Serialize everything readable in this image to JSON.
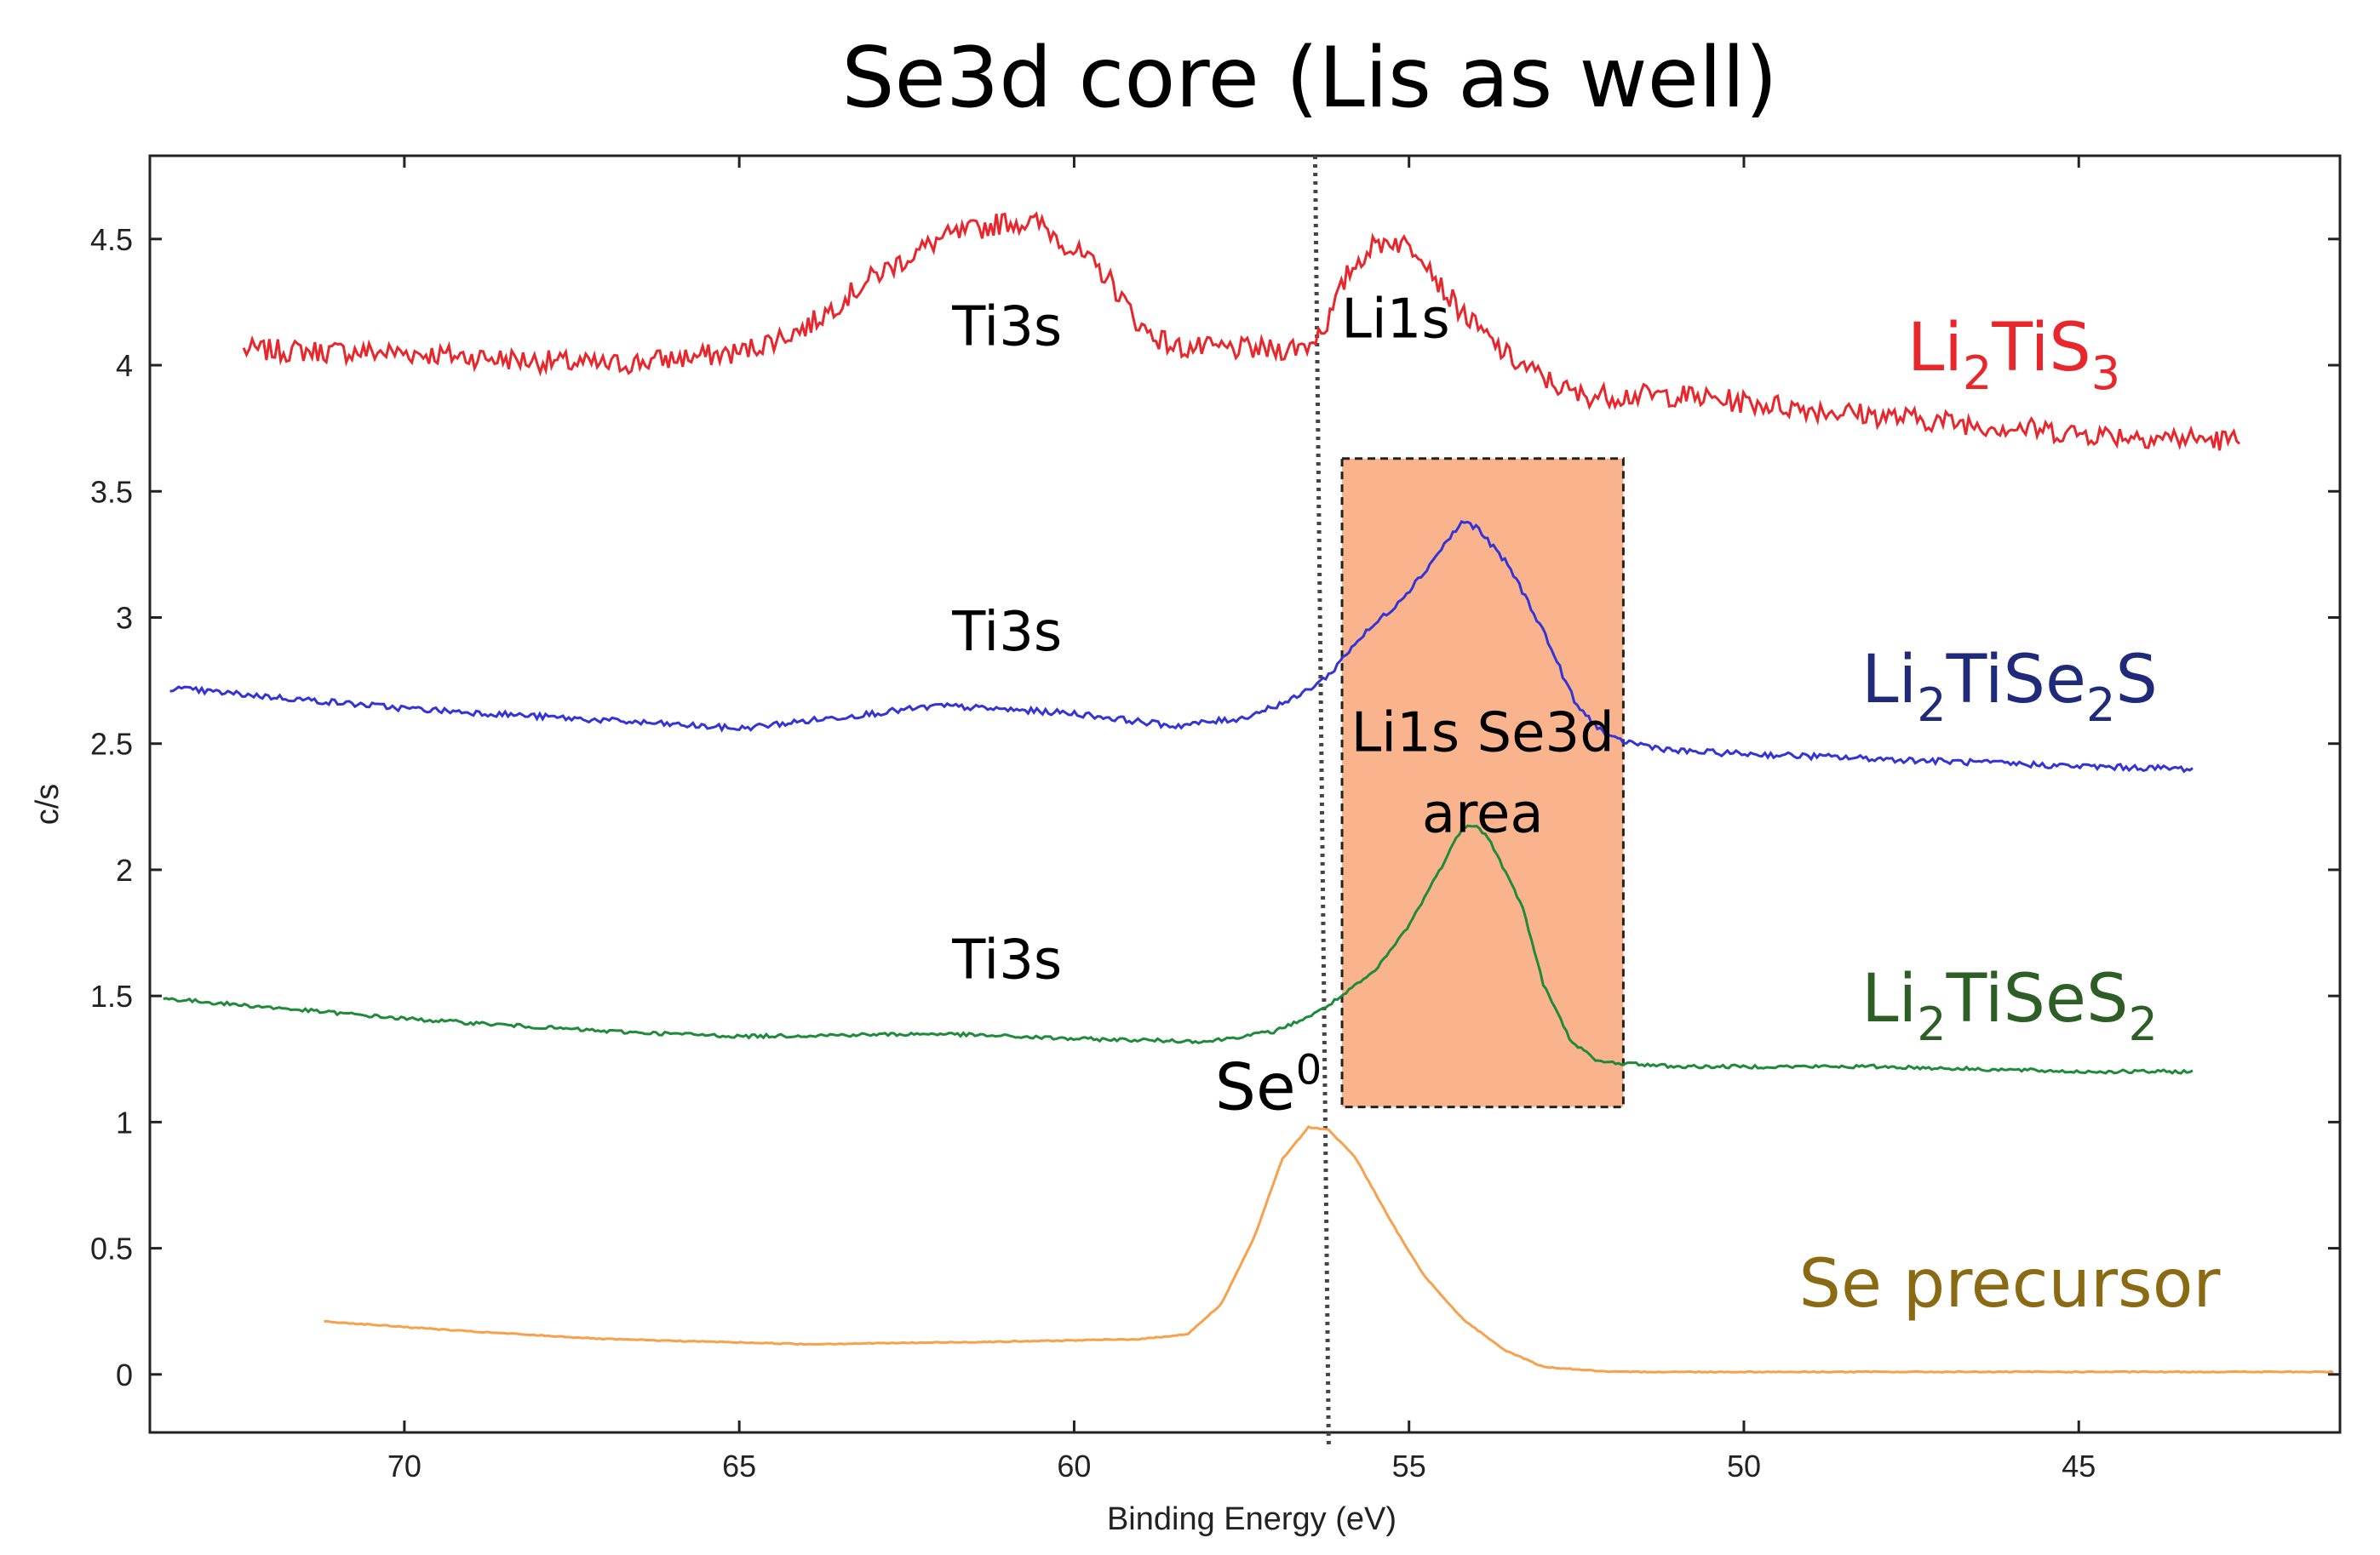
{
  "chart_data": {
    "type": "line",
    "title": "Se3d core (Lis as well)",
    "xlabel": "Binding Energy (eV)",
    "ylabel": "c/s",
    "xlim": [
      73.8,
      41.1
    ],
    "ylim": [
      -0.23,
      4.83
    ],
    "xticks": [
      70,
      65,
      60,
      55,
      50,
      45
    ],
    "xtick_labels": [
      "70",
      "65",
      "60",
      "55",
      "50",
      "45"
    ],
    "yticks": [
      0,
      0.5,
      1,
      1.5,
      2,
      2.5,
      3,
      3.5,
      4,
      4.5
    ],
    "ytick_labels": [
      "0",
      "0.5",
      "1",
      "1.5",
      "2",
      "2.5",
      "3",
      "3.5",
      "4",
      "4.5"
    ],
    "reference_line_x": 56.3,
    "highlight_region": {
      "x": [
        56.0,
        51.8
      ],
      "y": [
        1.06,
        3.63
      ],
      "color": "#f9b48e",
      "label_line1": "Li1s Se3d",
      "label_line2": "area"
    },
    "colors": {
      "li2tis3": "#e8262b",
      "li2tise2s": "#3434d6",
      "li2tises2": "#1f8a3a",
      "se_precursor": "#f7a14c",
      "se_precursor_label": "#8b6a14",
      "li2tise2s_label": "#1f2a7a",
      "li2tises2_label": "#2d5e25"
    },
    "series": [
      {
        "name": "Li2TiS3",
        "label_parts": [
          "Li",
          "2",
          "TiS",
          "3"
        ],
        "x_range": [
          72.4,
          42.6
        ],
        "noise": 0.045,
        "points": [
          [
            72.4,
            4.06
          ],
          [
            70,
            4.05
          ],
          [
            67,
            4.0
          ],
          [
            65,
            4.05
          ],
          [
            64,
            4.15
          ],
          [
            63,
            4.35
          ],
          [
            62,
            4.5
          ],
          [
            61,
            4.57
          ],
          [
            60.5,
            4.56
          ],
          [
            59.5,
            4.35
          ],
          [
            59,
            4.15
          ],
          [
            58.5,
            4.07
          ],
          [
            57,
            4.06
          ],
          [
            56.5,
            4.08
          ],
          [
            56.2,
            4.18
          ],
          [
            55.9,
            4.37
          ],
          [
            55.6,
            4.46
          ],
          [
            55.3,
            4.5
          ],
          [
            54.8,
            4.45
          ],
          [
            54.5,
            4.3
          ],
          [
            54.0,
            4.15
          ],
          [
            53.5,
            4.03
          ],
          [
            53,
            3.95
          ],
          [
            52.5,
            3.88
          ],
          [
            51,
            3.88
          ],
          [
            48,
            3.8
          ],
          [
            45,
            3.73
          ],
          [
            42.6,
            3.7
          ]
        ]
      },
      {
        "name": "Li2TiSe2S",
        "label_parts": [
          "Li",
          "2",
          "TiSe",
          "2",
          "S"
        ],
        "x_range": [
          73.5,
          43.3
        ],
        "noise": 0.012,
        "points": [
          [
            73.5,
            2.72
          ],
          [
            70,
            2.64
          ],
          [
            65,
            2.56
          ],
          [
            62,
            2.65
          ],
          [
            60,
            2.62
          ],
          [
            58.5,
            2.57
          ],
          [
            57.5,
            2.6
          ],
          [
            56.7,
            2.68
          ],
          [
            56.2,
            2.77
          ],
          [
            55.8,
            2.9
          ],
          [
            55.2,
            3.05
          ],
          [
            54.8,
            3.17
          ],
          [
            54.5,
            3.28
          ],
          [
            54.2,
            3.38
          ],
          [
            54.0,
            3.36
          ],
          [
            53.5,
            3.2
          ],
          [
            53.0,
            2.95
          ],
          [
            52.5,
            2.65
          ],
          [
            52,
            2.52
          ],
          [
            51,
            2.47
          ],
          [
            48,
            2.44
          ],
          [
            45,
            2.41
          ],
          [
            43.3,
            2.4
          ]
        ]
      },
      {
        "name": "Li2TiSeS2",
        "label_parts": [
          "Li",
          "2",
          "TiSeS",
          "2"
        ],
        "x_range": [
          73.6,
          43.3
        ],
        "noise": 0.007,
        "points": [
          [
            73.6,
            1.49
          ],
          [
            70,
            1.41
          ],
          [
            67,
            1.36
          ],
          [
            65,
            1.34
          ],
          [
            62,
            1.35
          ],
          [
            60,
            1.33
          ],
          [
            58,
            1.32
          ],
          [
            57,
            1.36
          ],
          [
            56.4,
            1.43
          ],
          [
            56,
            1.5
          ],
          [
            55.5,
            1.6
          ],
          [
            55.0,
            1.78
          ],
          [
            54.5,
            2.02
          ],
          [
            54.2,
            2.17
          ],
          [
            54.0,
            2.18
          ],
          [
            53.8,
            2.12
          ],
          [
            53.3,
            1.85
          ],
          [
            53.0,
            1.55
          ],
          [
            52.6,
            1.33
          ],
          [
            52.2,
            1.24
          ],
          [
            51,
            1.22
          ],
          [
            48,
            1.22
          ],
          [
            45,
            1.2
          ],
          [
            43.3,
            1.2
          ]
        ]
      },
      {
        "name": "Se precursor",
        "label_parts": [
          "Se precursor"
        ],
        "x_range": [
          71.2,
          41.2
        ],
        "noise": 0.002,
        "points": [
          [
            71.2,
            0.21
          ],
          [
            69,
            0.17
          ],
          [
            67,
            0.14
          ],
          [
            64,
            0.12
          ],
          [
            61,
            0.13
          ],
          [
            59,
            0.14
          ],
          [
            58.3,
            0.16
          ],
          [
            57.8,
            0.28
          ],
          [
            57.3,
            0.55
          ],
          [
            56.9,
            0.85
          ],
          [
            56.5,
            0.98
          ],
          [
            56.2,
            0.97
          ],
          [
            55.8,
            0.86
          ],
          [
            55.3,
            0.62
          ],
          [
            54.8,
            0.4
          ],
          [
            54.2,
            0.22
          ],
          [
            53.6,
            0.1
          ],
          [
            53,
            0.03
          ],
          [
            52,
            0.01
          ],
          [
            48,
            0.01
          ],
          [
            41.2,
            0.01
          ]
        ]
      }
    ],
    "annotations": [
      {
        "text": "Ti3s",
        "x": 61.0,
        "y": 4.08
      },
      {
        "text": "Li1s",
        "x": 55.2,
        "y": 4.11
      },
      {
        "text": "Ti3s",
        "x": 61.0,
        "y": 2.87
      },
      {
        "text": "Ti3s",
        "x": 61.0,
        "y": 1.57
      },
      {
        "text": "Se",
        "sup": "0",
        "x": 57.1,
        "y": 1.05
      }
    ]
  }
}
